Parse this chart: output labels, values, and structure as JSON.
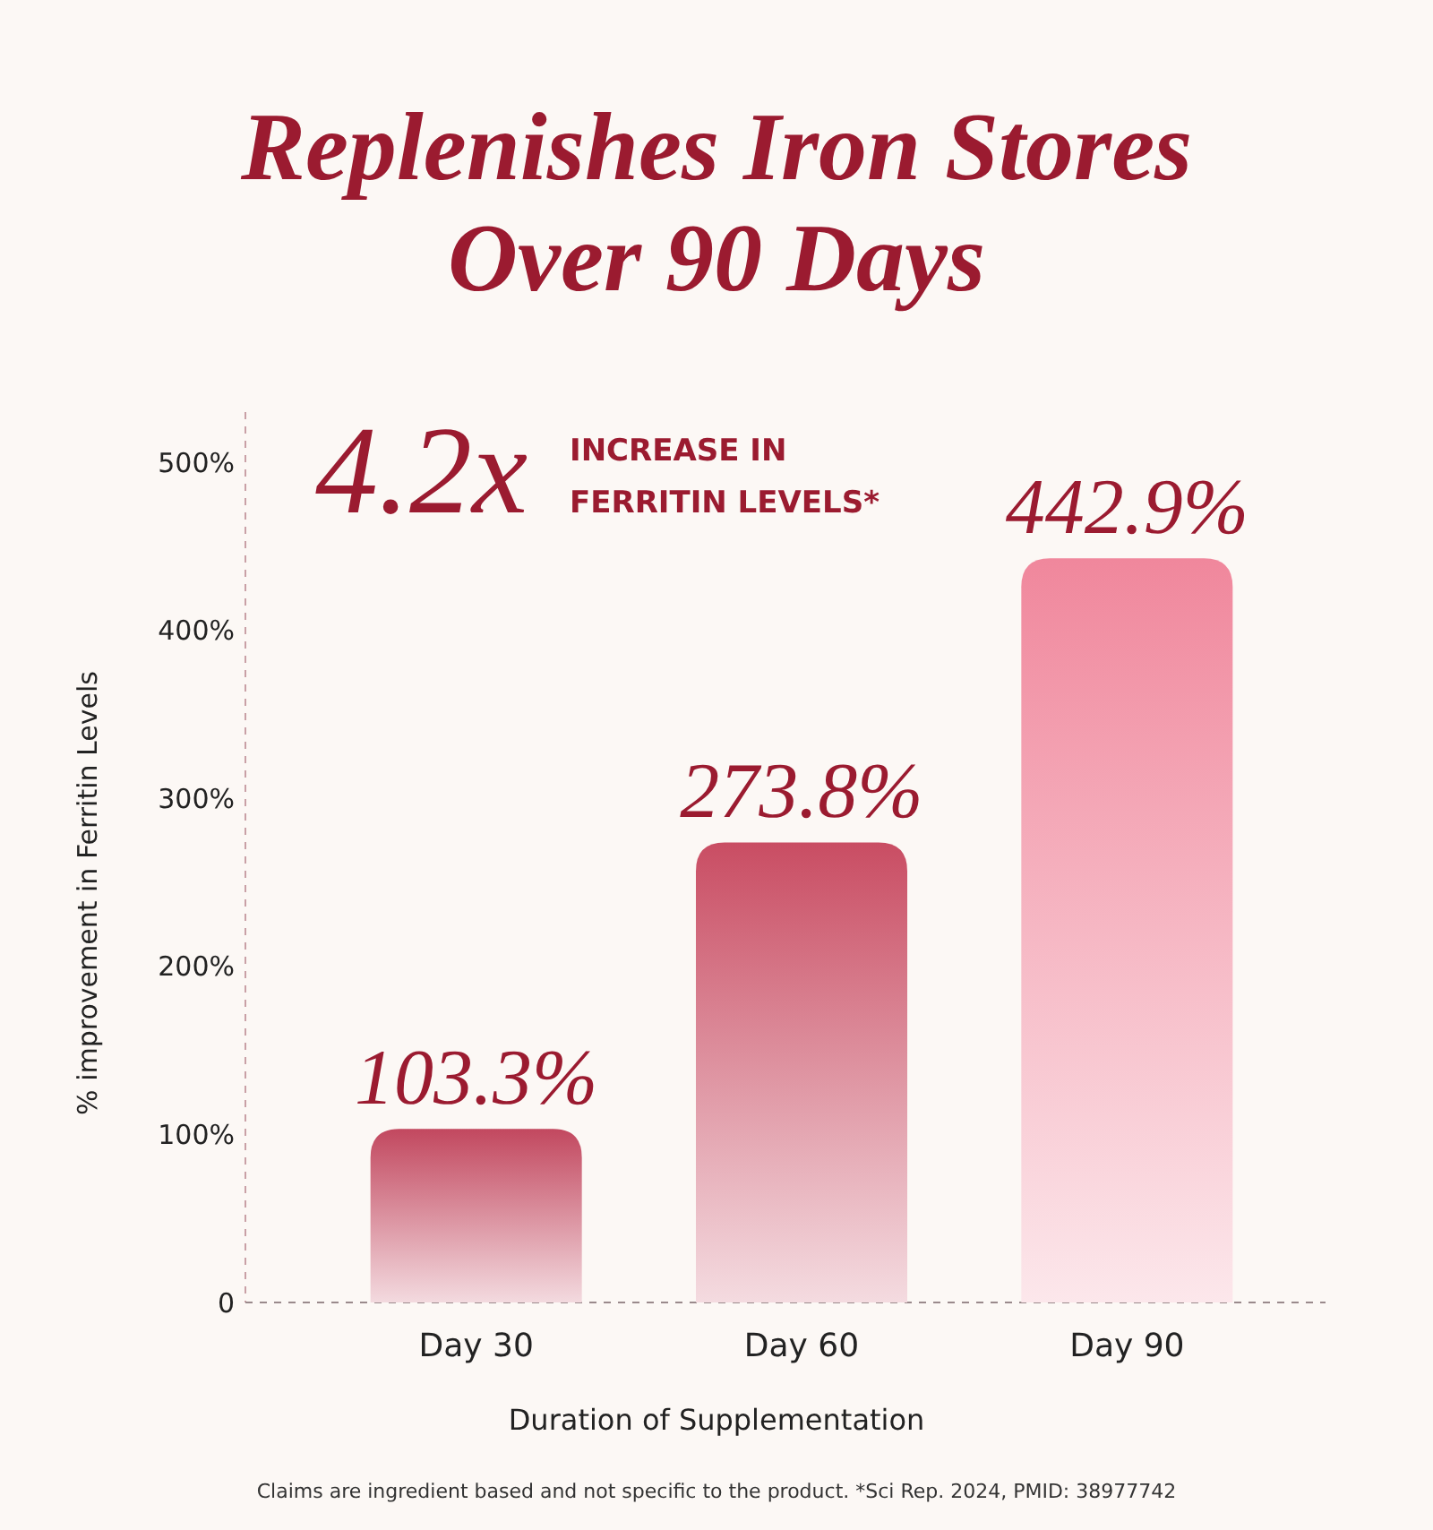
{
  "chart_data": {
    "type": "bar",
    "title": "Replenishes Iron Stores Over 90 Days",
    "xlabel": "Duration of Supplementation",
    "ylabel": "% improvement in Ferritin Levels",
    "categories": [
      "Day 30",
      "Day 60",
      "Day 90"
    ],
    "values": [
      103.3,
      273.8,
      442.9
    ],
    "value_labels": [
      "103.3%",
      "273.8%",
      "442.9%"
    ],
    "colors": [
      "#c2485f",
      "#c94d63",
      "#f0879c"
    ],
    "ylim": [
      0,
      530
    ],
    "yticks": [
      0,
      {
        "value": 100,
        "label": "100%"
      },
      {
        "value": 200,
        "label": "200%"
      },
      {
        "value": 300,
        "label": "300%"
      },
      {
        "value": 400,
        "label": "400%"
      },
      {
        "value": 500,
        "label": "500%"
      }
    ],
    "grid": false,
    "annotations": [
      "4.2x",
      "INCREASE IN FERRITIN LEVELS*",
      "Claims are ingredient based and not specific to the product. *Sci Rep. 2024, PMID: 38977742"
    ]
  }
}
